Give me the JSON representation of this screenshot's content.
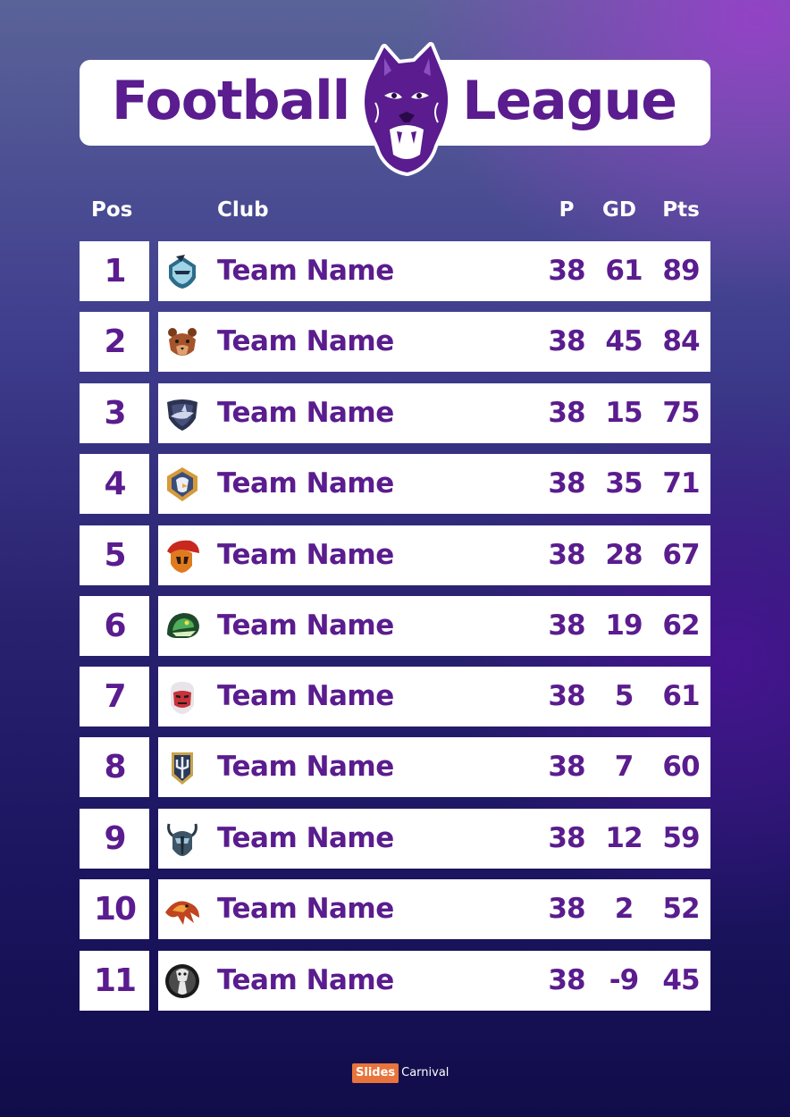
{
  "title": {
    "left": "Football",
    "right": "League",
    "mascot_icon": "panther-head-icon"
  },
  "headers": {
    "pos": "Pos",
    "club": "Club",
    "p": "P",
    "gd": "GD",
    "pts": "Pts"
  },
  "rows": [
    {
      "pos": "1",
      "team": "Team Name",
      "p": "38",
      "gd": "61",
      "pts": "89",
      "icon": "knight-helmet-icon"
    },
    {
      "pos": "2",
      "team": "Team Name",
      "p": "38",
      "gd": "45",
      "pts": "84",
      "icon": "bear-head-icon"
    },
    {
      "pos": "3",
      "team": "Team Name",
      "p": "38",
      "gd": "15",
      "pts": "75",
      "icon": "shark-shield-icon"
    },
    {
      "pos": "4",
      "team": "Team Name",
      "p": "38",
      "gd": "35",
      "pts": "71",
      "icon": "eagle-shield-icon"
    },
    {
      "pos": "5",
      "team": "Team Name",
      "p": "38",
      "gd": "28",
      "pts": "67",
      "icon": "spartan-helmet-icon"
    },
    {
      "pos": "6",
      "team": "Team Name",
      "p": "38",
      "gd": "19",
      "pts": "62",
      "icon": "snake-head-icon"
    },
    {
      "pos": "7",
      "team": "Team Name",
      "p": "38",
      "gd": "5",
      "pts": "61",
      "icon": "warrior-face-icon"
    },
    {
      "pos": "8",
      "team": "Team Name",
      "p": "38",
      "gd": "7",
      "pts": "60",
      "icon": "trident-shield-icon"
    },
    {
      "pos": "9",
      "team": "Team Name",
      "p": "38",
      "gd": "12",
      "pts": "59",
      "icon": "viking-helmet-icon"
    },
    {
      "pos": "10",
      "team": "Team Name",
      "p": "38",
      "gd": "2",
      "pts": "52",
      "icon": "phoenix-icon"
    },
    {
      "pos": "11",
      "team": "Team Name",
      "p": "38",
      "gd": "-9",
      "pts": "45",
      "icon": "cobra-badge-icon"
    }
  ],
  "branding": {
    "part1": "Slides",
    "part2": "Carnival"
  },
  "colors": {
    "accent": "#5a1c8e",
    "brand_orange": "#e8743b",
    "card": "#ffffff"
  }
}
